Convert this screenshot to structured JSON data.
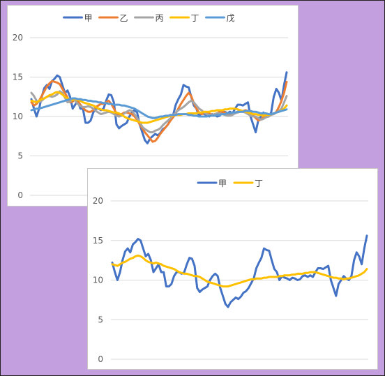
{
  "colors": {
    "甲": "#4472c4",
    "乙": "#ed7d31",
    "丙": "#a5a5a5",
    "丁": "#ffc000",
    "戊": "#5b9bd5",
    "background": "#c39fe0",
    "gridline": "#d9d9d9"
  },
  "chart_data": [
    {
      "type": "line",
      "ylim": [
        0,
        20
      ],
      "yticks": [
        "0",
        "5",
        "10",
        "15",
        "20"
      ],
      "grid": true,
      "legend_position": "top",
      "x_count": 100,
      "series": [
        {
          "name": "甲",
          "values": [
            12.2,
            11.0,
            10.0,
            11.0,
            12.5,
            13.6,
            14.0,
            13.5,
            14.5,
            14.8,
            15.2,
            15.0,
            14.0,
            13.0,
            13.3,
            12.5,
            11.0,
            11.5,
            12.0,
            11.0,
            11.0,
            9.2,
            9.2,
            9.5,
            10.5,
            11.0,
            11.0,
            10.8,
            11.0,
            12.0,
            12.8,
            12.7,
            11.8,
            9.0,
            8.5,
            8.8,
            9.0,
            9.2,
            10.0,
            10.5,
            10.8,
            10.5,
            9.0,
            8.0,
            7.0,
            6.6,
            7.2,
            7.5,
            7.8,
            7.6,
            7.9,
            8.4,
            8.6,
            9.0,
            9.6,
            10.2,
            11.5,
            12.2,
            12.8,
            14.0,
            13.8,
            13.7,
            12.5,
            11.4,
            11.0,
            10.0,
            10.5,
            10.3,
            10.2,
            10.0,
            10.3,
            10.2,
            10.0,
            10.1,
            10.5,
            10.6,
            10.4,
            10.6,
            10.4,
            11.0,
            11.5,
            11.5,
            11.4,
            11.6,
            11.8,
            10.0,
            9.0,
            8.0,
            9.5,
            10.0,
            10.5,
            10.2,
            10.0,
            10.5,
            12.5,
            13.5,
            13.0,
            12.0,
            14.0,
            15.6
          ]
        },
        {
          "name": "乙",
          "values": [
            11.8,
            11.4,
            11.6,
            12.0,
            12.6,
            13.2,
            13.8,
            14.2,
            14.5,
            14.4,
            14.3,
            14.1,
            13.5,
            13.0,
            12.4,
            11.8,
            11.9,
            12.2,
            12.0,
            11.5,
            11.1,
            10.8,
            10.6,
            10.6,
            10.8,
            11.2,
            11.4,
            11.6,
            11.6,
            11.8,
            12.0,
            11.6,
            11.0,
            10.4,
            10.2,
            10.3,
            10.5,
            10.5,
            10.4,
            10.3,
            10.0,
            9.6,
            9.0,
            8.5,
            8.0,
            7.6,
            7.2,
            6.8,
            6.9,
            7.3,
            7.8,
            8.2,
            8.6,
            9.0,
            9.5,
            9.9,
            10.4,
            11.0,
            11.6,
            12.1,
            12.6,
            13.0,
            12.6,
            11.7,
            11.0,
            10.5,
            10.3,
            10.4,
            10.5,
            10.4,
            10.2,
            10.2,
            10.4,
            10.6,
            10.6,
            10.5,
            10.3,
            10.3,
            10.4,
            10.5,
            10.6,
            10.7,
            10.7,
            10.8,
            10.7,
            10.5,
            10.2,
            9.8,
            9.5,
            9.6,
            9.9,
            10.1,
            10.2,
            10.3,
            10.3,
            10.6,
            11.2,
            12.0,
            13.0,
            14.4
          ]
        },
        {
          "name": "丙",
          "values": [
            13.0,
            12.6,
            12.0,
            11.8,
            12.0,
            12.3,
            12.5,
            12.6,
            12.5,
            12.6,
            12.8,
            13.2,
            13.0,
            12.4,
            11.8,
            11.9,
            12.2,
            12.0,
            11.6,
            11.3,
            11.2,
            11.2,
            11.3,
            11.2,
            11.0,
            10.7,
            10.5,
            10.3,
            10.4,
            10.5,
            10.6,
            10.5,
            10.3,
            10.1,
            10.0,
            10.1,
            10.4,
            10.6,
            10.8,
            10.7,
            10.3,
            9.8,
            9.3,
            8.7,
            8.4,
            8.2,
            8.0,
            8.0,
            8.2,
            8.3,
            8.5,
            8.9,
            9.2,
            9.5,
            9.8,
            10.2,
            10.5,
            10.8,
            11.0,
            11.2,
            11.5,
            11.8,
            12.0,
            11.8,
            11.4,
            11.0,
            10.8,
            10.5,
            10.3,
            10.2,
            10.2,
            10.3,
            10.4,
            10.4,
            10.3,
            10.2,
            10.1,
            10.1,
            10.2,
            10.4,
            10.5,
            10.6,
            10.6,
            10.5,
            10.3,
            10.1,
            10.0,
            10.0,
            9.8,
            9.6,
            9.7,
            9.9,
            10.0,
            10.2,
            10.3,
            10.5,
            10.7,
            11.0,
            11.8,
            12.6
          ]
        },
        {
          "name": "丁",
          "values": [
            12.0,
            11.9,
            11.8,
            12.0,
            12.2,
            12.3,
            12.5,
            12.7,
            12.8,
            13.0,
            13.1,
            13.0,
            12.8,
            12.5,
            12.3,
            12.2,
            12.1,
            12.2,
            12.1,
            12.0,
            11.8,
            11.7,
            11.6,
            11.5,
            11.4,
            11.2,
            11.0,
            10.9,
            10.8,
            10.8,
            10.7,
            10.6,
            10.5,
            10.5,
            10.4,
            10.2,
            10.0,
            9.8,
            9.7,
            9.6,
            9.5,
            9.4,
            9.3,
            9.2,
            9.2,
            9.2,
            9.3,
            9.4,
            9.5,
            9.6,
            9.7,
            9.8,
            9.9,
            10.0,
            10.1,
            10.1,
            10.2,
            10.2,
            10.2,
            10.3,
            10.3,
            10.4,
            10.4,
            10.4,
            10.4,
            10.5,
            10.5,
            10.6,
            10.6,
            10.6,
            10.7,
            10.7,
            10.8,
            10.8,
            10.8,
            10.9,
            10.9,
            11.0,
            11.0,
            11.0,
            10.9,
            10.8,
            10.7,
            10.6,
            10.5,
            10.4,
            10.3,
            10.3,
            10.2,
            10.2,
            10.1,
            10.2,
            10.2,
            10.3,
            10.4,
            10.5,
            10.6,
            10.8,
            11.0,
            11.4
          ]
        },
        {
          "name": "戊",
          "values": [
            10.8,
            10.9,
            11.0,
            11.0,
            11.1,
            11.2,
            11.3,
            11.4,
            11.5,
            11.6,
            11.7,
            11.8,
            11.9,
            12.0,
            12.1,
            12.2,
            12.3,
            12.3,
            12.2,
            12.2,
            12.1,
            12.1,
            12.0,
            12.0,
            11.9,
            11.9,
            11.8,
            11.8,
            11.7,
            11.7,
            11.6,
            11.6,
            11.5,
            11.5,
            11.5,
            11.4,
            11.4,
            11.3,
            11.2,
            11.1,
            11.0,
            10.8,
            10.6,
            10.4,
            10.2,
            10.0,
            9.9,
            9.8,
            9.8,
            9.9,
            10.0,
            10.0,
            10.1,
            10.1,
            10.2,
            10.2,
            10.2,
            10.3,
            10.3,
            10.3,
            10.3,
            10.2,
            10.2,
            10.1,
            10.1,
            10.0,
            10.0,
            10.0,
            10.0,
            10.1,
            10.1,
            10.1,
            10.2,
            10.2,
            10.3,
            10.3,
            10.4,
            10.4,
            10.5,
            10.5,
            10.6,
            10.6,
            10.6,
            10.7,
            10.7,
            10.7,
            10.6,
            10.6,
            10.5,
            10.4,
            10.4,
            10.4,
            10.3,
            10.3,
            10.4,
            10.5,
            10.6,
            10.7,
            10.8,
            10.9
          ]
        }
      ]
    },
    {
      "type": "line",
      "ylim": [
        0,
        20
      ],
      "yticks": [
        "0",
        "5",
        "10",
        "15",
        "20"
      ],
      "grid": true,
      "legend_position": "top",
      "x_count": 100,
      "series_refs": [
        "甲",
        "丁"
      ]
    }
  ]
}
